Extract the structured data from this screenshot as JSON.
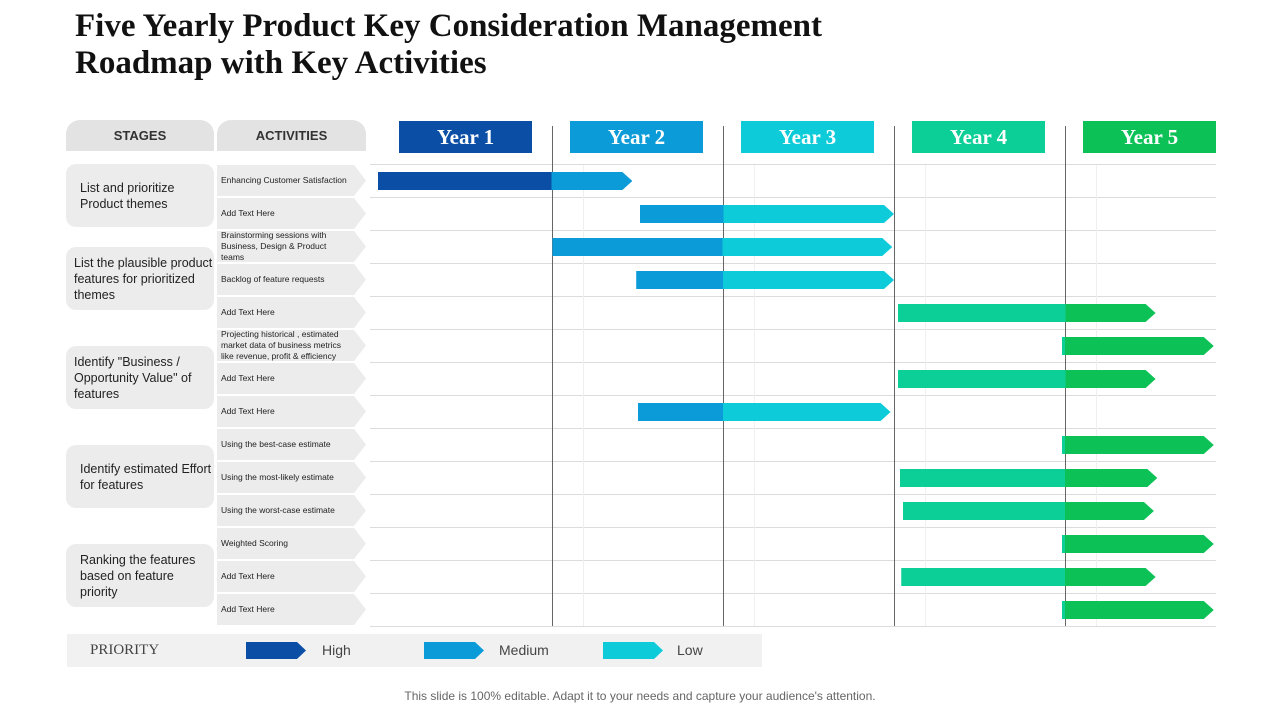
{
  "title": [
    "Five Yearly Product Key Consideration Management",
    "Roadmap with Key Activities"
  ],
  "headers": {
    "stages": "STAGES",
    "activities": "ACTIVITIES"
  },
  "stages": [
    "List and prioritize Product themes",
    "List the plausible product features for prioritized themes",
    "Identify \"Business / Opportunity Value\" of features",
    "Identify estimated Effort for features",
    "Ranking the features based on feature priority"
  ],
  "activities": [
    "Enhancing Customer Satisfaction",
    "Add Text Here",
    "Brainstorming sessions with Business, Design & Product teams",
    "Backlog of feature requests",
    "Add Text Here",
    "Projecting historical , estimated market data of business metrics like revenue, profit & efficiency",
    "Add Text Here",
    "Add Text Here",
    "Using the best-case estimate",
    "Using the most-likely estimate",
    "Using the worst-case estimate",
    "Weighted Scoring",
    "Add Text Here",
    "Add Text Here"
  ],
  "years": [
    "Year 1",
    "Year 2",
    "Year 3",
    "Year 4",
    "Year 5"
  ],
  "year_colors": [
    "#0a4ea6",
    "#0b9bd8",
    "#0dcbd8",
    "#0ccf98",
    "#0cc257"
  ],
  "chart_data": {
    "type": "gantt",
    "x_unit": "years",
    "xlim": [
      0,
      5
    ],
    "bars": [
      {
        "start": 0.0,
        "end": 1.47
      },
      {
        "start": 1.53,
        "end": 3.0
      },
      {
        "start": 1.02,
        "end": 2.99
      },
      {
        "start": 1.51,
        "end": 3.0
      },
      {
        "start": 3.04,
        "end": 4.53
      },
      {
        "start": 4.0,
        "end": 4.87
      },
      {
        "start": 3.04,
        "end": 4.53
      },
      {
        "start": 1.52,
        "end": 2.98
      },
      {
        "start": 4.0,
        "end": 4.87
      },
      {
        "start": 3.05,
        "end": 4.54
      },
      {
        "start": 3.07,
        "end": 4.52
      },
      {
        "start": 4.0,
        "end": 4.87
      },
      {
        "start": 3.06,
        "end": 4.53
      },
      {
        "start": 4.0,
        "end": 4.87
      }
    ]
  },
  "legend": {
    "title": "PRIORITY",
    "items": [
      {
        "label": "High",
        "color": "#0a4ea6"
      },
      {
        "label": "Medium",
        "color": "#0b9bd8"
      },
      {
        "label": "Low",
        "color": "#0dcbd8"
      }
    ]
  },
  "footer": "This slide is 100% editable. Adapt it to your needs and capture your audience's attention."
}
